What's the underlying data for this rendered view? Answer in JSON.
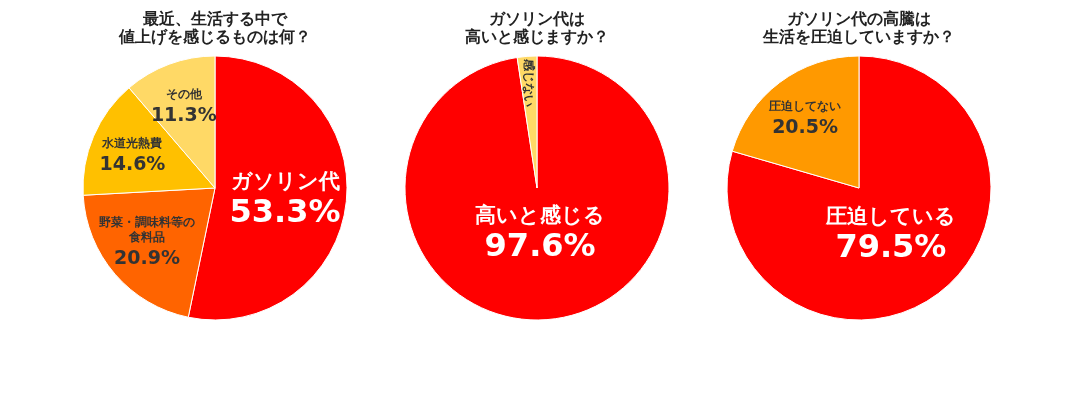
{
  "chart_data": [
    {
      "type": "pie",
      "title": "最近、生活する中で値上げを感じるものは何？",
      "categories": [
        "ガソリン代",
        "野菜・調味料等の食料品",
        "水道光熱費",
        "その他"
      ],
      "values": [
        53.3,
        20.9,
        14.6,
        11.3
      ],
      "colors": [
        "#ff0000",
        "#ff6400",
        "#ffc000",
        "#ffd966"
      ],
      "value_labels": [
        "53.3%",
        "20.9%",
        "14.6%",
        "11.3%"
      ]
    },
    {
      "type": "pie",
      "title": "ガソリン代は高いと感じますか？",
      "categories": [
        "高いと感じる",
        "感じない"
      ],
      "values": [
        97.6,
        2.4
      ],
      "colors": [
        "#ff0000",
        "#ffd966"
      ],
      "value_labels": [
        "97.6%",
        null
      ]
    },
    {
      "type": "pie",
      "title": "ガソリン代の高騰は生活を圧迫していますか？",
      "categories": [
        "圧迫している",
        "圧迫してない"
      ],
      "values": [
        79.5,
        20.5
      ],
      "colors": [
        "#ff0000",
        "#ff9900"
      ],
      "value_labels": [
        "79.5%",
        "20.5%"
      ]
    }
  ]
}
